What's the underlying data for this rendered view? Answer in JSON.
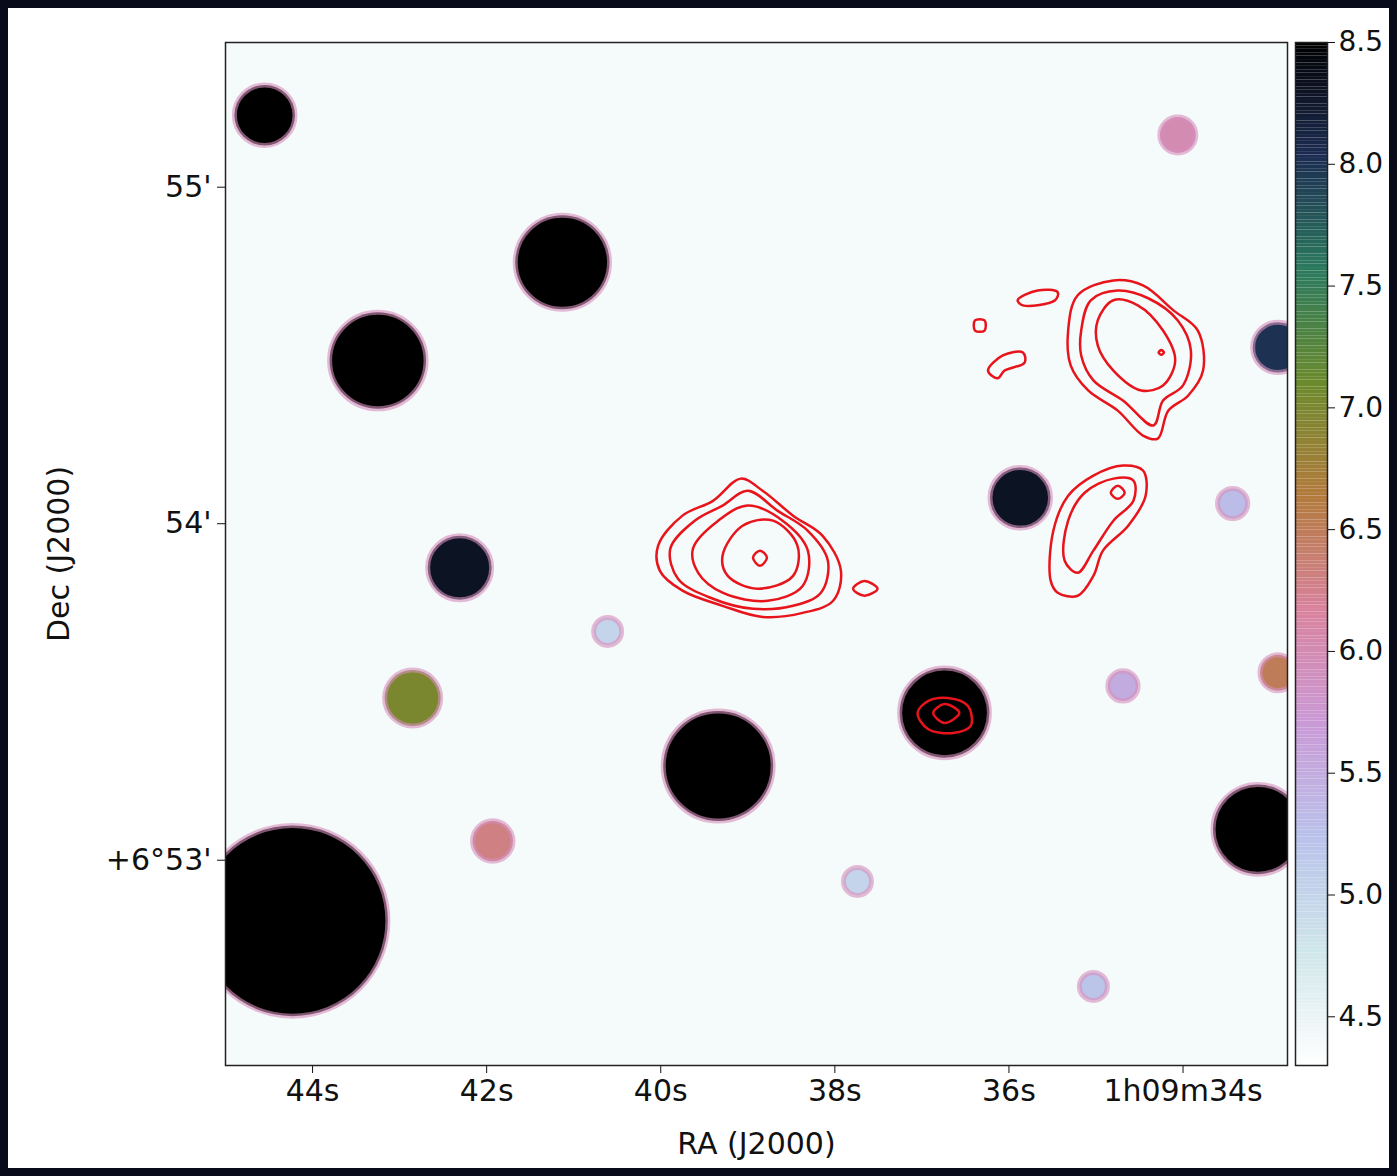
{
  "chart_data": {
    "type": "image",
    "xlabel": "RA (J2000)",
    "ylabel": "Dec (J2000)",
    "xlim": [
      45.0,
      32.8
    ],
    "ylim": [
      52.39,
      55.43
    ],
    "xticks": [
      {
        "value": 44,
        "label": "44s"
      },
      {
        "value": 42,
        "label": "42s"
      },
      {
        "value": 40,
        "label": "40s"
      },
      {
        "value": 38,
        "label": "38s"
      },
      {
        "value": 36,
        "label": "36s"
      },
      {
        "value": 34,
        "label": "1h09m34s"
      }
    ],
    "yticks": [
      {
        "value": 53,
        "label": "+6°53'"
      },
      {
        "value": 54,
        "label": "54'"
      },
      {
        "value": 55,
        "label": "55'"
      }
    ],
    "image": {
      "background": 4.4,
      "sources": [
        {
          "ra": 44.55,
          "dec": 55.214,
          "radius": 5.4,
          "value": 8.5
        },
        {
          "ra": 41.13,
          "dec": 54.777,
          "radius": 8.4,
          "value": 8.5
        },
        {
          "ra": 43.25,
          "dec": 54.485,
          "radius": 8.6,
          "value": 8.5
        },
        {
          "ra": 42.31,
          "dec": 53.869,
          "radius": 5.7,
          "value": 8.3
        },
        {
          "ra": 42.85,
          "dec": 53.482,
          "radius": 5.0,
          "value": 7.0
        },
        {
          "ra": 39.34,
          "dec": 53.28,
          "radius": 9.8,
          "value": 8.5
        },
        {
          "ra": 36.74,
          "dec": 53.438,
          "radius": 8.0,
          "value": 8.5
        },
        {
          "ra": 35.87,
          "dec": 54.077,
          "radius": 5.4,
          "value": 8.3
        },
        {
          "ra": 32.91,
          "dec": 54.524,
          "radius": 4.5,
          "value": 8.0
        },
        {
          "ra": 33.14,
          "dec": 53.092,
          "radius": 8.0,
          "value": 8.5
        },
        {
          "ra": 32.91,
          "dec": 53.557,
          "radius": 3.2,
          "value": 6.5
        },
        {
          "ra": 34.06,
          "dec": 55.155,
          "radius": 3.2,
          "value": 6.0
        },
        {
          "ra": 44.23,
          "dec": 52.82,
          "radius": 17.0,
          "value": 8.5
        },
        {
          "ra": 41.93,
          "dec": 53.057,
          "radius": 3.6,
          "value": 6.3
        },
        {
          "ra": 34.69,
          "dec": 53.518,
          "radius": 2.7,
          "value": 5.5
        },
        {
          "ra": 33.43,
          "dec": 54.06,
          "radius": 2.7,
          "value": 5.3
        },
        {
          "ra": 35.03,
          "dec": 52.625,
          "radius": 2.5,
          "value": 5.2
        },
        {
          "ra": 37.74,
          "dec": 52.937,
          "radius": 2.5,
          "value": 5.0
        },
        {
          "ra": 40.61,
          "dec": 53.68,
          "radius": 2.5,
          "value": 5.0
        }
      ]
    },
    "contours": {
      "color": "#e8141c",
      "paths": [
        [
          [
            40.03,
            53.935
          ],
          [
            39.75,
            54.024
          ],
          [
            39.4,
            54.068
          ],
          [
            39.08,
            54.134
          ],
          [
            38.83,
            54.098
          ],
          [
            38.48,
            54.024
          ],
          [
            38.14,
            53.964
          ],
          [
            37.93,
            53.86
          ],
          [
            38.02,
            53.771
          ],
          [
            38.37,
            53.735
          ],
          [
            38.83,
            53.723
          ],
          [
            39.29,
            53.756
          ],
          [
            39.75,
            53.801
          ],
          [
            40.01,
            53.86
          ]
        ],
        [
          [
            39.89,
            53.926
          ],
          [
            39.61,
            54.009
          ],
          [
            39.29,
            54.054
          ],
          [
            39.0,
            54.098
          ],
          [
            38.66,
            54.039
          ],
          [
            38.31,
            53.979
          ],
          [
            38.08,
            53.89
          ],
          [
            38.16,
            53.795
          ],
          [
            38.48,
            53.756
          ],
          [
            38.94,
            53.747
          ],
          [
            39.4,
            53.777
          ],
          [
            39.8,
            53.836
          ]
        ],
        [
          [
            39.63,
            53.926
          ],
          [
            39.34,
            54.009
          ],
          [
            39.0,
            54.054
          ],
          [
            38.6,
            54.009
          ],
          [
            38.31,
            53.92
          ],
          [
            38.37,
            53.815
          ],
          [
            38.77,
            53.771
          ],
          [
            39.29,
            53.795
          ],
          [
            39.57,
            53.854
          ]
        ],
        [
          [
            39.29,
            53.905
          ],
          [
            39.06,
            53.994
          ],
          [
            38.71,
            54.009
          ],
          [
            38.43,
            53.935
          ],
          [
            38.48,
            53.845
          ],
          [
            38.89,
            53.807
          ],
          [
            39.23,
            53.845
          ]
        ],
        [
          [
            38.94,
            53.899
          ],
          [
            38.86,
            53.92
          ],
          [
            38.78,
            53.899
          ],
          [
            38.86,
            53.875
          ]
        ],
        [
          [
            37.79,
            53.807
          ],
          [
            37.66,
            53.83
          ],
          [
            37.51,
            53.807
          ],
          [
            37.66,
            53.786
          ]
        ],
        [
          [
            35.32,
            54.574
          ],
          [
            35.21,
            54.679
          ],
          [
            34.8,
            54.723
          ],
          [
            34.46,
            54.708
          ],
          [
            34.11,
            54.634
          ],
          [
            33.83,
            54.574
          ],
          [
            33.77,
            54.455
          ],
          [
            33.94,
            54.381
          ],
          [
            34.17,
            54.336
          ],
          [
            34.29,
            54.253
          ],
          [
            34.46,
            54.262
          ],
          [
            34.75,
            54.336
          ],
          [
            35.09,
            54.396
          ],
          [
            35.29,
            54.47
          ]
        ],
        [
          [
            35.17,
            54.574
          ],
          [
            35.06,
            54.664
          ],
          [
            34.75,
            54.693
          ],
          [
            34.4,
            54.67
          ],
          [
            34.06,
            54.604
          ],
          [
            33.91,
            54.515
          ],
          [
            34.0,
            54.411
          ],
          [
            34.23,
            54.366
          ],
          [
            34.34,
            54.292
          ],
          [
            34.69,
            54.366
          ],
          [
            35.03,
            54.426
          ],
          [
            35.17,
            54.5
          ]
        ],
        [
          [
            34.98,
            54.604
          ],
          [
            34.8,
            54.664
          ],
          [
            34.52,
            54.649
          ],
          [
            34.23,
            54.574
          ],
          [
            34.09,
            54.485
          ],
          [
            34.23,
            54.411
          ],
          [
            34.48,
            54.396
          ],
          [
            34.8,
            54.455
          ],
          [
            34.98,
            54.53
          ]
        ],
        [
          [
            34.28,
            54.509
          ],
          [
            34.25,
            54.516
          ],
          [
            34.22,
            54.509
          ],
          [
            34.25,
            54.502
          ]
        ],
        [
          [
            35.9,
            54.664
          ],
          [
            35.67,
            54.693
          ],
          [
            35.44,
            54.688
          ],
          [
            35.47,
            54.664
          ],
          [
            35.84,
            54.649
          ]
        ],
        [
          [
            36.39,
            54.604
          ],
          [
            36.28,
            54.604
          ],
          [
            36.28,
            54.574
          ],
          [
            36.39,
            54.574
          ]
        ],
        [
          [
            36.24,
            54.455
          ],
          [
            36.07,
            54.5
          ],
          [
            35.84,
            54.509
          ],
          [
            35.82,
            54.479
          ],
          [
            36.05,
            54.455
          ],
          [
            36.13,
            54.432
          ]
        ],
        [
          [
            35.52,
            53.83
          ],
          [
            35.49,
            53.979
          ],
          [
            35.32,
            54.083
          ],
          [
            35.03,
            54.143
          ],
          [
            34.69,
            54.173
          ],
          [
            34.46,
            54.158
          ],
          [
            34.43,
            54.083
          ],
          [
            34.63,
            53.994
          ],
          [
            34.92,
            53.92
          ],
          [
            35.03,
            53.845
          ],
          [
            35.21,
            53.786
          ],
          [
            35.44,
            53.795
          ]
        ],
        [
          [
            35.36,
            53.89
          ],
          [
            35.32,
            54.009
          ],
          [
            35.13,
            54.092
          ],
          [
            34.8,
            54.134
          ],
          [
            34.57,
            54.128
          ],
          [
            34.57,
            54.068
          ],
          [
            34.8,
            54.009
          ],
          [
            35.03,
            53.92
          ],
          [
            35.21,
            53.854
          ]
        ],
        [
          [
            34.83,
            54.092
          ],
          [
            34.75,
            54.113
          ],
          [
            34.67,
            54.092
          ],
          [
            34.75,
            54.074
          ]
        ],
        [
          [
            37.05,
            53.438
          ],
          [
            36.93,
            53.473
          ],
          [
            36.7,
            53.482
          ],
          [
            36.47,
            53.458
          ],
          [
            36.44,
            53.399
          ],
          [
            36.64,
            53.378
          ],
          [
            36.93,
            53.39
          ]
        ],
        [
          [
            36.87,
            53.438
          ],
          [
            36.74,
            53.464
          ],
          [
            36.57,
            53.438
          ],
          [
            36.74,
            53.408
          ]
        ]
      ]
    },
    "colorbar": {
      "range": [
        4.3,
        8.5
      ],
      "ticks": [
        4.5,
        {
          "value": 5,
          "label": "5.0"
        },
        5.5,
        {
          "value": 6,
          "label": "6.0"
        },
        6.5,
        {
          "value": 7,
          "label": "7.0"
        },
        7.5,
        {
          "value": 8,
          "label": "8.0"
        },
        8.5
      ]
    }
  }
}
